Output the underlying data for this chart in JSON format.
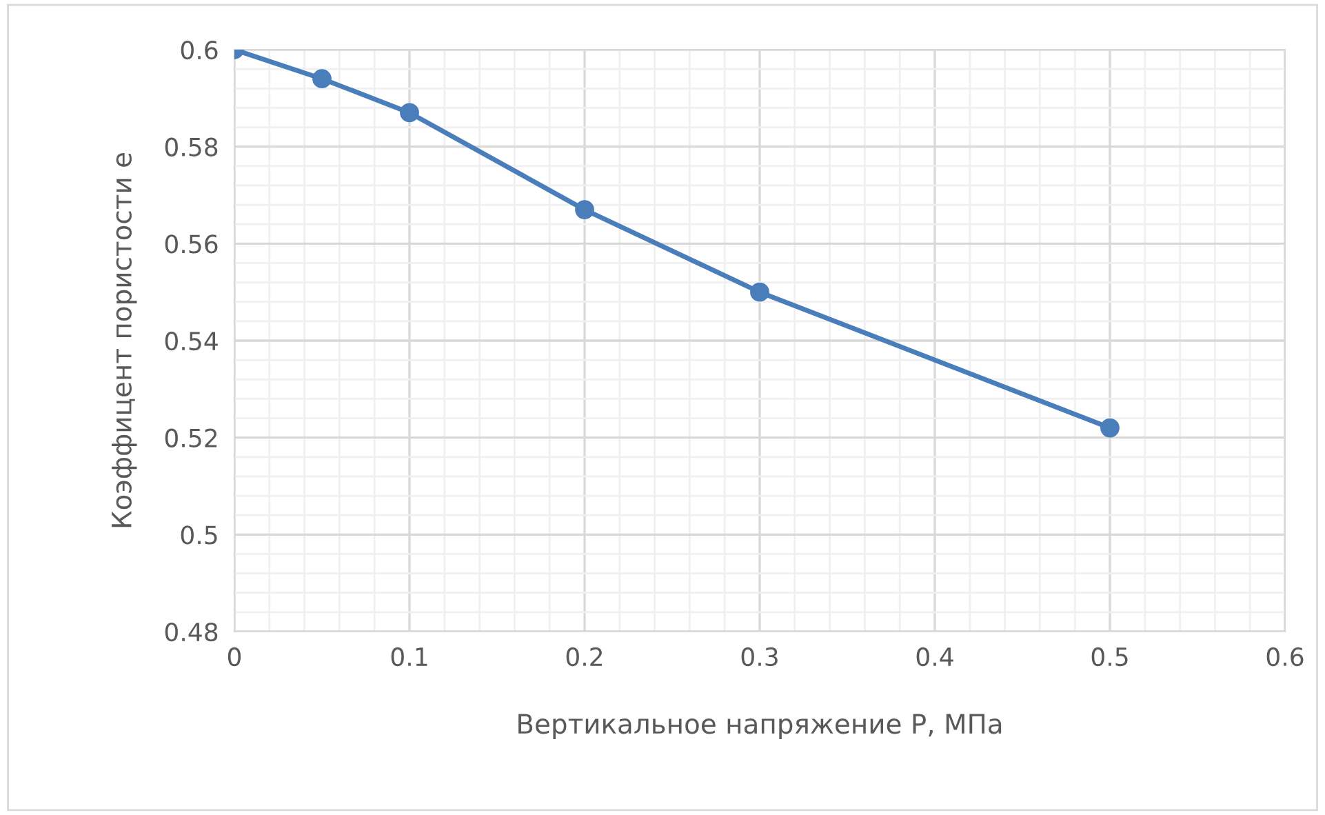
{
  "chart_data": {
    "type": "line",
    "xlabel": "Вертикальное напряжение P, МПа",
    "ylabel": "Коэффицент пористости e",
    "x": [
      0,
      0.05,
      0.1,
      0.2,
      0.3,
      0.5
    ],
    "series": [
      {
        "color": "#4a7ebb",
        "values": [
          0.6,
          0.594,
          0.587,
          0.567,
          0.55,
          0.522
        ]
      }
    ],
    "xlim": [
      0,
      0.6
    ],
    "xticks": [
      0,
      0.1,
      0.2,
      0.3,
      0.4,
      0.5,
      0.6
    ],
    "ylim": [
      0.48,
      0.6
    ],
    "yticks": [
      0.48,
      0.5,
      0.52,
      0.54,
      0.56,
      0.58,
      0.6
    ],
    "grid": true,
    "marker": "circle",
    "line_style": "solid"
  }
}
